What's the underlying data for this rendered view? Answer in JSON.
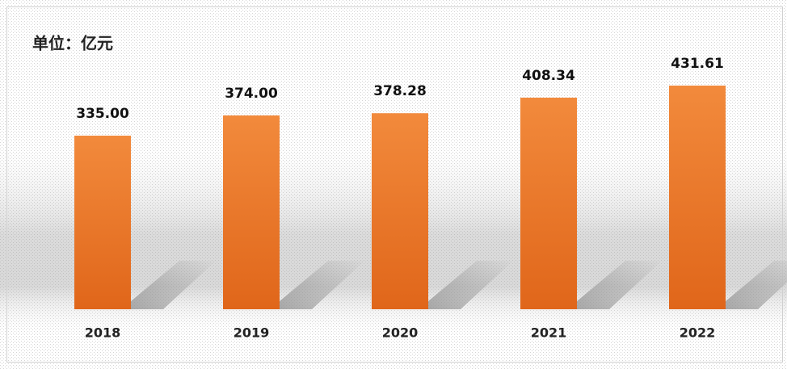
{
  "chart_data": {
    "type": "bar",
    "title": "单位：亿元",
    "categories": [
      "2018",
      "2019",
      "2020",
      "2021",
      "2022"
    ],
    "values": [
      335.0,
      374.0,
      378.28,
      408.34,
      431.61
    ],
    "value_labels": [
      "335.00",
      "374.00",
      "378.28",
      "408.34",
      "431.61"
    ],
    "color": "#ee7427"
  }
}
